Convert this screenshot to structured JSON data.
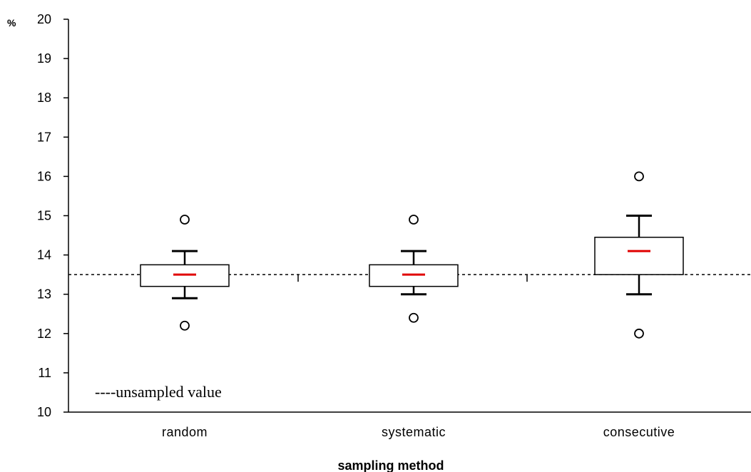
{
  "chart_data": {
    "type": "box",
    "y_unit_label": "%",
    "xlabel": "sampling method",
    "ylabel": "",
    "ylim": [
      10,
      20
    ],
    "yticks": [
      "10",
      "11",
      "12",
      "13",
      "14",
      "15",
      "16",
      "17",
      "18",
      "19",
      "20"
    ],
    "categories": [
      "random",
      "systematic",
      "consecutive"
    ],
    "boxes": [
      {
        "category": "random",
        "whisker_low": 12.9,
        "q1": 13.2,
        "median": 13.5,
        "q3": 13.75,
        "whisker_high": 14.1,
        "outliers": [
          12.2,
          14.9
        ]
      },
      {
        "category": "systematic",
        "whisker_low": 13.0,
        "q1": 13.2,
        "median": 13.5,
        "q3": 13.75,
        "whisker_high": 14.1,
        "outliers": [
          12.4,
          14.9
        ]
      },
      {
        "category": "consecutive",
        "whisker_low": 13.0,
        "q1": 13.5,
        "median": 14.1,
        "q3": 14.45,
        "whisker_high": 15.0,
        "outliers": [
          12.0,
          16.0
        ]
      }
    ],
    "reference_line": {
      "value": 13.5,
      "style": "dashed",
      "label": "----unsampled value"
    },
    "legend_position": "bottom-left",
    "grid": false,
    "colors": {
      "median": "#e00000",
      "box": "#000000",
      "reference_line": "#000000"
    }
  }
}
